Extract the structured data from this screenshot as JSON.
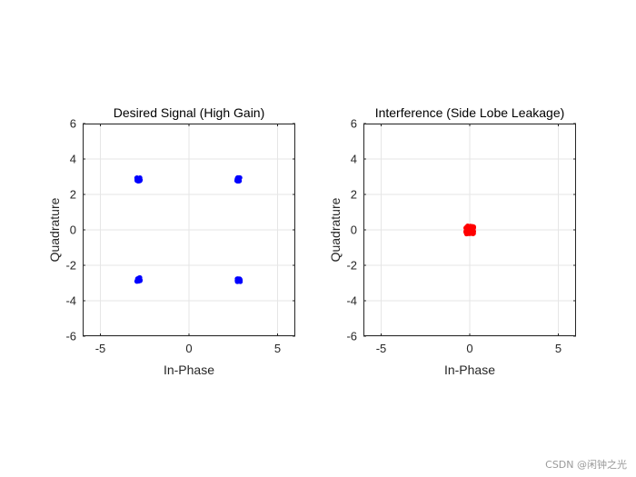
{
  "chart_data": [
    {
      "type": "scatter",
      "title": "Desired Signal (High Gain)",
      "xlabel": "In-Phase",
      "ylabel": "Quadrature",
      "xlim": [
        -6,
        6
      ],
      "ylim": [
        -6,
        6
      ],
      "xticks": [
        -5,
        0,
        5
      ],
      "yticks": [
        -6,
        -4,
        -2,
        0,
        2,
        4,
        6
      ],
      "grid": true,
      "series": [
        {
          "color": "#0000ff",
          "points": [
            [
              -2.85,
              2.85
            ],
            [
              2.8,
              2.85
            ],
            [
              -2.85,
              -2.8
            ],
            [
              2.8,
              -2.85
            ]
          ]
        }
      ]
    },
    {
      "type": "scatter",
      "title": "Interference (Side Lobe Leakage)",
      "xlabel": "In-Phase",
      "ylabel": "Quadrature",
      "xlim": [
        -6,
        6
      ],
      "ylim": [
        -6,
        6
      ],
      "xticks": [
        -5,
        0,
        5
      ],
      "yticks": [
        -6,
        -4,
        -2,
        0,
        2,
        4,
        6
      ],
      "grid": true,
      "series": [
        {
          "color": "#ff0000",
          "points": [
            [
              -0.12,
              0.12
            ],
            [
              0.12,
              0.12
            ],
            [
              -0.12,
              -0.12
            ],
            [
              0.12,
              -0.12
            ]
          ]
        }
      ]
    }
  ],
  "watermark": "CSDN @闲钟之光"
}
